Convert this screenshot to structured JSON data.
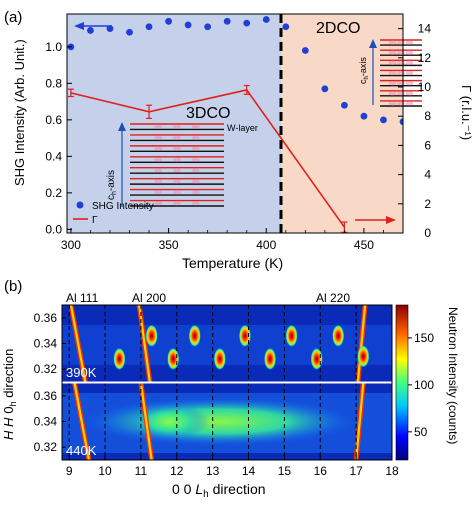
{
  "panel_a": {
    "panel_label": "(a)",
    "region_labels": {
      "left": "3DCO",
      "right": "2DCO"
    },
    "colors": {
      "left_bg": "#c5d0ea",
      "right_bg": "#f8d8c7",
      "shg": "#1f3fd6",
      "gamma": "#e0201b",
      "divider": "#000000"
    },
    "inset_left": {
      "axis_label": "c",
      "axis_subscript": "h",
      "axis_suffix": "-axis",
      "layer_label": "W-layer"
    },
    "inset_right": {
      "axis_label": "c",
      "axis_subscript": "h",
      "axis_suffix": "-axis"
    },
    "legend": {
      "shg": "SHG Intensity",
      "gamma": "Γ"
    },
    "ylabel_left": "SHG Intensity (Arb. Unit.)",
    "ylabel_right": "Γ (r.l.u.⁻¹)",
    "xlabel": "Temperature (K)"
  },
  "panel_b": {
    "panel_label": "(b)",
    "peak_labels": [
      "Al 111",
      "Al 200",
      "Al 220"
    ],
    "temp_labels": [
      "390K",
      "440K"
    ],
    "ylabel": "H H 0h direction",
    "ylabel_parts": {
      "italic": "H H",
      "tail": "0",
      "sub": "h",
      "word": " direction"
    },
    "xlabel_parts": {
      "prefix": "0 0 ",
      "italic": "L",
      "sub": "h",
      "word": " direction"
    },
    "colorbar_label": "Neutron Intensity (counts)",
    "colors": {
      "map_bg": "#0a2ab8"
    }
  },
  "chart_data": [
    {
      "type": "scatter",
      "panel": "a",
      "xlabel": "Temperature (K)",
      "ylabel": "SHG Intensity (Arb. Unit.)",
      "y2label": "Γ (r.l.u.⁻¹)",
      "xlim": [
        298,
        470
      ],
      "ylim": [
        -0.02,
        1.18
      ],
      "y2lim": [
        0,
        15
      ],
      "xticks": [
        300,
        350,
        400,
        450
      ],
      "yticks": [
        0.0,
        0.2,
        0.4,
        0.6,
        0.8,
        1.0
      ],
      "y2ticks": [
        0,
        2,
        4,
        6,
        8,
        10,
        12,
        14
      ],
      "phase_boundary": 400,
      "series": [
        {
          "name": "SHG Intensity",
          "axis": "left",
          "marker": "circle",
          "x": [
            300,
            310,
            320,
            330,
            340,
            350,
            360,
            370,
            380,
            390,
            400,
            410,
            420,
            430,
            440,
            450,
            460,
            470
          ],
          "y": [
            1.0,
            1.09,
            1.1,
            1.08,
            1.11,
            1.14,
            1.12,
            1.11,
            1.14,
            1.13,
            1.15,
            1.11,
            0.98,
            0.77,
            0.68,
            0.62,
            0.6,
            0.59
          ]
        },
        {
          "name": "Γ",
          "axis": "right",
          "marker": "line",
          "x": [
            300,
            340,
            390,
            440
          ],
          "y": [
            9.6,
            8.3,
            9.8,
            0.4
          ],
          "error": [
            0.25,
            0.45,
            0.3,
            0.35
          ]
        }
      ],
      "legend_position": "bottom-left"
    },
    {
      "type": "heatmap",
      "panel": "b",
      "xlabel": "0 0 Lh direction",
      "ylabel": "H H 0h direction",
      "xlim": [
        8.8,
        18.0
      ],
      "xticks": [
        9,
        10,
        11,
        12,
        13,
        14,
        15,
        16,
        17,
        18
      ],
      "ylim": [
        0.31,
        0.37
      ],
      "yticks": [
        0.32,
        0.34,
        0.36
      ],
      "colorbar": {
        "label": "Neutron Intensity (counts)",
        "ticks": [
          50,
          100,
          150
        ],
        "range": [
          20,
          185
        ]
      },
      "maps": [
        {
          "temperature": "390K",
          "peaks_L": [
            10.4,
            11.3,
            11.9,
            12.5,
            13.2,
            13.9,
            14.6,
            15.2,
            15.9,
            16.5,
            17.2
          ],
          "peaks_H": [
            0.328,
            0.346,
            0.328,
            0.346,
            0.328,
            0.346,
            0.328,
            0.346,
            0.328,
            0.346,
            0.33
          ]
        },
        {
          "temperature": "440K",
          "description_band": "diffuse rod along L",
          "band_H": 0.34
        }
      ]
    }
  ]
}
